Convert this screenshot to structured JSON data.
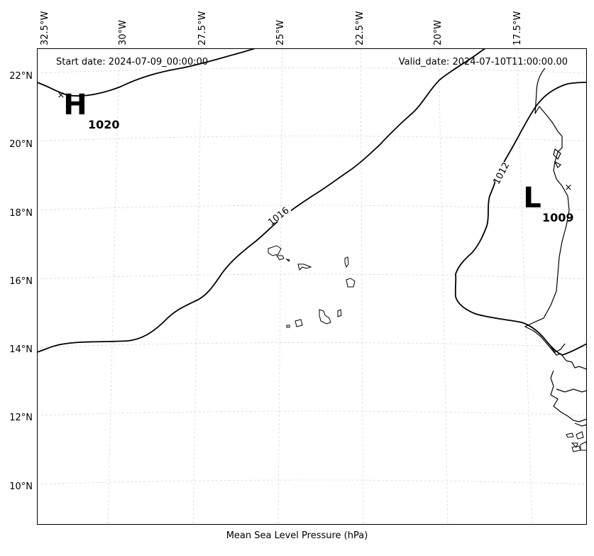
{
  "header": {
    "start_date": "Start date: 2024-07-09_00:00:00",
    "valid_date": "Valid_date: 2024-07-10T11:00:00.00"
  },
  "xlabel": "Mean Sea Level Pressure (hPa)",
  "axes": {
    "lon_ticks": [
      "32.5°W",
      "30°W",
      "27.5°W",
      "25°W",
      "22.5°W",
      "20°W",
      "17.5°W"
    ],
    "lat_ticks": [
      "22°N",
      "20°N",
      "18°N",
      "16°N",
      "14°N",
      "12°N",
      "10°N"
    ]
  },
  "pressure_centers": [
    {
      "type": "H",
      "value": "1020"
    },
    {
      "type": "L",
      "value": "1009"
    }
  ],
  "isobars": [
    {
      "value": "1016"
    },
    {
      "value": "1012"
    }
  ],
  "colors": {
    "coastline": "#000000",
    "isobar": "#000000",
    "grid": "#cccccc"
  }
}
